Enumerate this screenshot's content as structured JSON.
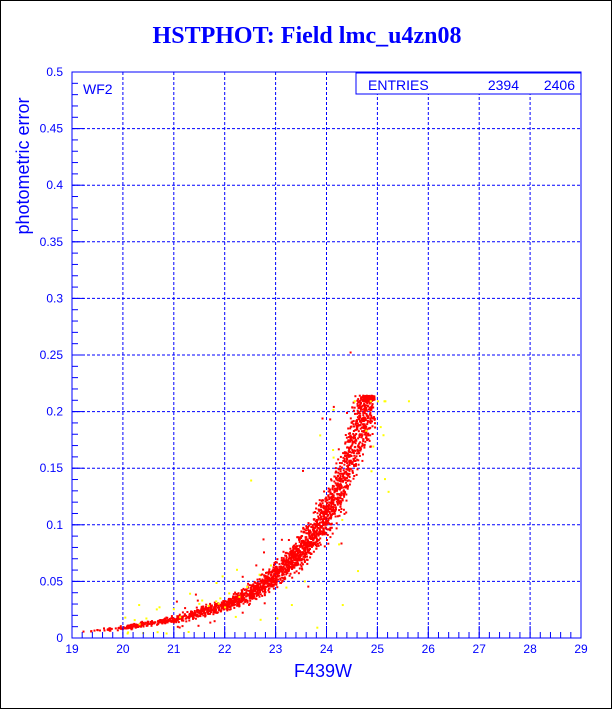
{
  "chart_data": {
    "type": "scatter",
    "title": "HSTPHOT: Field lmc_u4zn08",
    "xlabel": "F439W",
    "ylabel": "photometric error",
    "xlim": [
      19,
      29
    ],
    "ylim": [
      0,
      0.5
    ],
    "x_ticks": [
      "19",
      "20",
      "21",
      "22",
      "23",
      "24",
      "25",
      "26",
      "27",
      "28",
      "29"
    ],
    "y_ticks": [
      "0",
      "0.05",
      "0.1",
      "0.15",
      "0.2",
      "0.25",
      "0.3",
      "0.35",
      "0.4",
      "0.45",
      "0.5"
    ],
    "grid": true,
    "panel_label": "WF2",
    "stats": {
      "label": "ENTRIES",
      "values": [
        "2394",
        "2406"
      ]
    },
    "series": [
      {
        "color": "#ff0000",
        "ridge": [
          [
            19.2,
            0.006
          ],
          [
            20,
            0.01
          ],
          [
            21,
            0.017
          ],
          [
            22,
            0.03
          ],
          [
            22.5,
            0.04
          ],
          [
            23,
            0.058
          ],
          [
            23.5,
            0.078
          ],
          [
            24,
            0.11
          ],
          [
            24.3,
            0.14
          ],
          [
            24.5,
            0.17
          ],
          [
            24.7,
            0.2
          ],
          [
            24.9,
            0.215
          ]
        ],
        "mag_cutoff_error": 0.215
      },
      {
        "color": "#ffff00",
        "description_points": [
          [
            20.3,
            0.03
          ],
          [
            21.3,
            0.04
          ],
          [
            22.5,
            0.14
          ],
          [
            23.3,
            0.03
          ],
          [
            24.3,
            0.03
          ],
          [
            24.6,
            0.06
          ],
          [
            24.9,
            0.17
          ],
          [
            25.1,
            0.18
          ],
          [
            25.2,
            0.13
          ],
          [
            25.6,
            0.21
          ],
          [
            23.8,
            0.01
          ]
        ]
      }
    ]
  }
}
